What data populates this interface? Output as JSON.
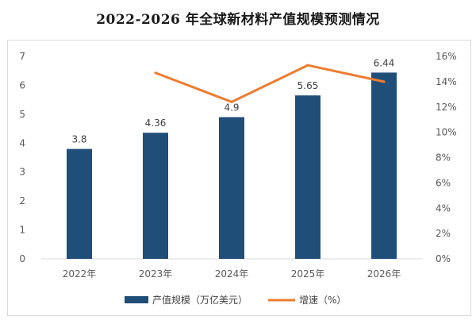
{
  "title": "2022-2026 年全球新材料产值规模预测情况",
  "colors": {
    "bar": "#1f4e79",
    "line": "#ed7d31",
    "axis": "#d9d9d9",
    "text": "#595959"
  },
  "chart_data": {
    "type": "bar",
    "categories": [
      "2022年",
      "2023年",
      "2024年",
      "2025年",
      "2026年"
    ],
    "series": [
      {
        "name": "产值规模（万亿美元）",
        "type": "bar",
        "axis": "left",
        "values": [
          3.8,
          4.36,
          4.9,
          5.65,
          6.44
        ],
        "data_labels": [
          "3.8",
          "4.36",
          "4.9",
          "5.65",
          "6.44"
        ]
      },
      {
        "name": "增速（%）",
        "type": "line",
        "axis": "right",
        "values": [
          null,
          14.7,
          12.4,
          15.3,
          14.0
        ]
      }
    ],
    "y_left": {
      "lim": [
        0,
        7
      ],
      "ticks": [
        0,
        1,
        2,
        3,
        4,
        5,
        6,
        7
      ],
      "tick_labels": [
        "0",
        "1",
        "2",
        "3",
        "4",
        "5",
        "6",
        "7"
      ]
    },
    "y_right": {
      "lim": [
        0,
        16
      ],
      "ticks": [
        0,
        2,
        4,
        6,
        8,
        10,
        12,
        14,
        16
      ],
      "tick_labels": [
        "0%",
        "2%",
        "4%",
        "6%",
        "8%",
        "10%",
        "12%",
        "14%",
        "16%"
      ]
    },
    "grid": false,
    "legend": "bottom-center"
  }
}
